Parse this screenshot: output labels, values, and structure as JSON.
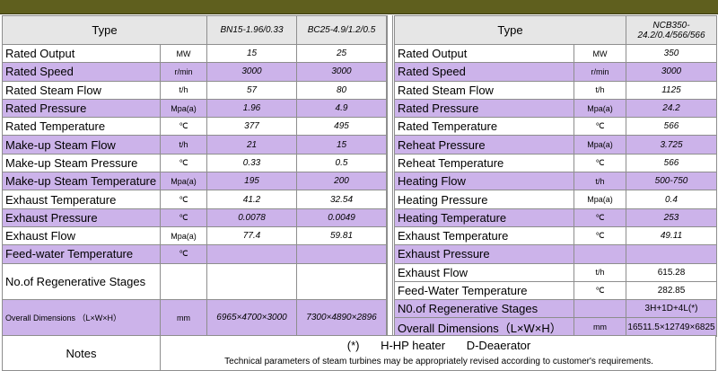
{
  "colors": {
    "header_bar": "#5f5f1e",
    "highlight_row": "#ccb3ea",
    "header_cell": "#e6e6e6"
  },
  "left": {
    "header": {
      "type": "Type",
      "model1": "BN15-1.96/0.33",
      "model2": "BC25-4.9/1.2/0.5"
    },
    "rows": [
      {
        "name": "Rated Output",
        "unit": "MW",
        "v1": "15",
        "v2": "25"
      },
      {
        "name": "Rated Speed",
        "unit": "r/min",
        "v1": "3000",
        "v2": "3000"
      },
      {
        "name": "Rated Steam Flow",
        "unit": "t/h",
        "v1": "57",
        "v2": "80"
      },
      {
        "name": "Rated Pressure",
        "unit": "Mpa(a)",
        "v1": "1.96",
        "v2": "4.9"
      },
      {
        "name": "Rated Temperature",
        "unit": "℃",
        "v1": "377",
        "v2": "495"
      },
      {
        "name": "Make-up Steam Flow",
        "unit": "t/h",
        "v1": "21",
        "v2": "15"
      },
      {
        "name": "Make-up Steam Pressure",
        "unit": "℃",
        "v1": "0.33",
        "v2": "0.5"
      },
      {
        "name": "Make-up Steam Temperature",
        "unit": "Mpa(a)",
        "v1": "195",
        "v2": "200"
      },
      {
        "name": "Exhaust Temperature",
        "unit": "℃",
        "v1": "41.2",
        "v2": "32.54"
      },
      {
        "name": "Exhaust Pressure",
        "unit": "℃",
        "v1": "0.0078",
        "v2": "0.0049"
      },
      {
        "name": "Exhaust Flow",
        "unit": "Mpa(a)",
        "v1": "77.4",
        "v2": "59.81"
      },
      {
        "name": "Feed-water Temperature",
        "unit": "℃",
        "v1": "",
        "v2": ""
      },
      {
        "name": "No.of Regenerative Stages",
        "unit": "",
        "v1": "",
        "v2": ""
      },
      {
        "name": "Overall Dimensions （L×W×H）",
        "unit": "mm",
        "v1": "6965×4700×3000",
        "v2": "7300×4890×2896"
      }
    ]
  },
  "right": {
    "header": {
      "type": "Type",
      "model": "NCB350-24.2/0.4/566/566"
    },
    "rows": [
      {
        "name": "Rated Output",
        "unit": "MW",
        "v": "350"
      },
      {
        "name": "Rated Speed",
        "unit": "r/min",
        "v": "3000"
      },
      {
        "name": "Rated Steam Flow",
        "unit": "t/h",
        "v": "1125"
      },
      {
        "name": "Rated Pressure",
        "unit": "Mpa(a)",
        "v": "24.2"
      },
      {
        "name": "Rated Temperature",
        "unit": "℃",
        "v": "566"
      },
      {
        "name": "Reheat Pressure",
        "unit": "Mpa(a)",
        "v": "3.725"
      },
      {
        "name": "Reheat Temperature",
        "unit": "℃",
        "v": "566"
      },
      {
        "name": "Heating Flow",
        "unit": "t/h",
        "v": "500-750"
      },
      {
        "name": "Heating Pressure",
        "unit": "Mpa(a)",
        "v": "0.4"
      },
      {
        "name": "Heating Temperature",
        "unit": "℃",
        "v": "253"
      },
      {
        "name": "Exhaust Temperature",
        "unit": "℃",
        "v": "49.11"
      },
      {
        "name": "Exhaust Pressure",
        "unit": "",
        "v": ""
      },
      {
        "name": "Exhaust Flow",
        "unit": "t/h",
        "v": "615.28"
      },
      {
        "name": "Feed-Water Temperature",
        "unit": "℃",
        "v": "282.85"
      },
      {
        "name": "N0.of Regenerative Stages",
        "unit": "",
        "v": "3H+1D+4L(*)"
      },
      {
        "name": "Overall Dimensions（L×W×H）",
        "unit": "mm",
        "v": "16511.5×12749×6825"
      }
    ]
  },
  "notes": {
    "label": "Notes",
    "mark": "(*)",
    "hp": "H-HP heater",
    "de": "D-Deaerator",
    "remark": "Technical parameters of steam turbines may be appropriately revised according to customer's requirements."
  }
}
